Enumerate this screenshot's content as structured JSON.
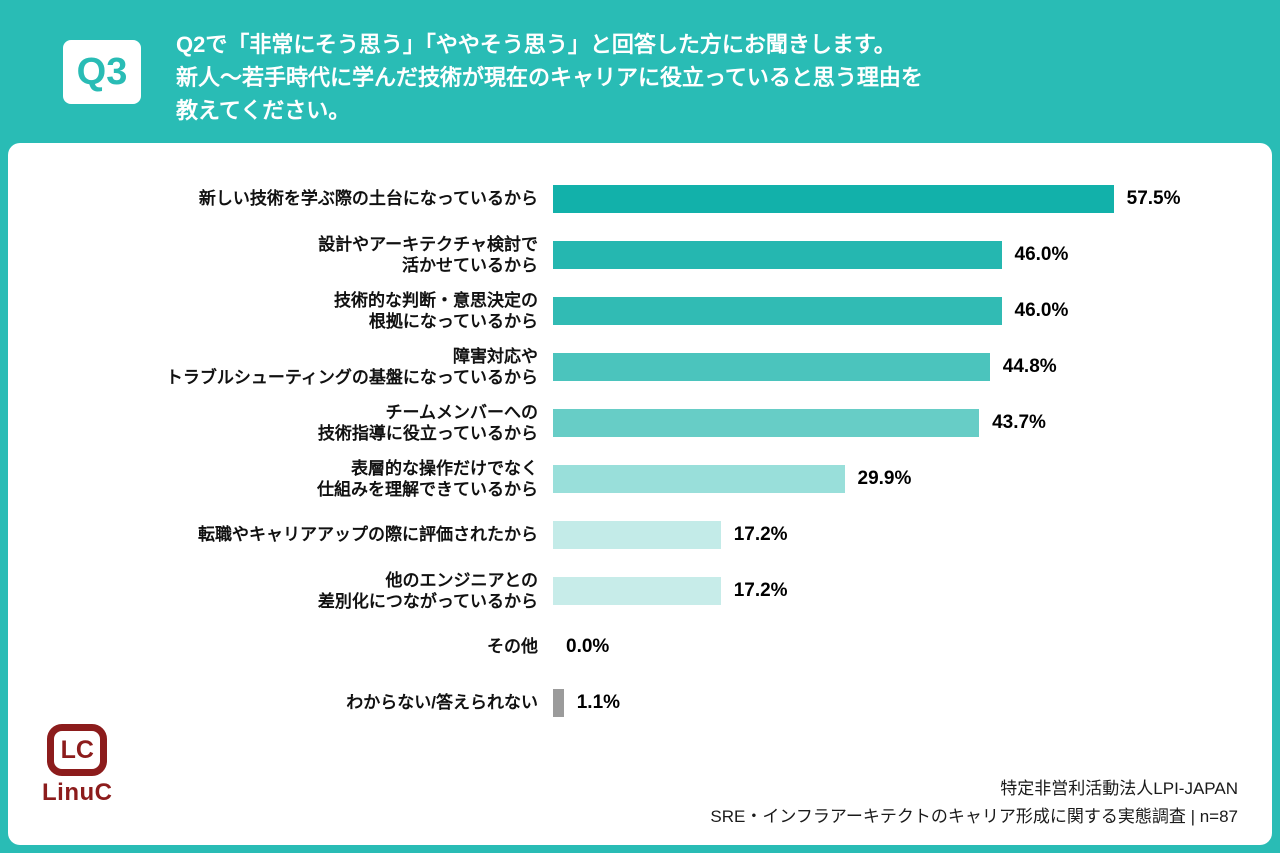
{
  "header": {
    "badge": "Q3",
    "question": "Q2で「非常にそう思う」「ややそう思う」と回答した方にお聞きします。\n新人〜若手時代に学んだ技術が現在のキャリアに役立っていると思う理由を\n教えてください。"
  },
  "chart_data": {
    "type": "bar",
    "orientation": "horizontal",
    "unit": "%",
    "xlim": [
      0,
      60
    ],
    "categories": [
      "新しい技術を学ぶ際の土台になっているから",
      "設計やアーキテクチャ検討で\n活かせているから",
      "技術的な判断・意思決定の\n根拠になっているから",
      "障害対応や\nトラブルシューティングの基盤になっているから",
      "チームメンバーへの\n技術指導に役立っているから",
      "表層的な操作だけでなく\n仕組みを理解できているから",
      "転職やキャリアアップの際に評価されたから",
      "他のエンジニアとの\n差別化につながっているから",
      "その他",
      "わからない/答えられない"
    ],
    "values": [
      57.5,
      46.0,
      46.0,
      44.8,
      43.7,
      29.9,
      17.2,
      17.2,
      0.0,
      1.1
    ],
    "value_labels": [
      "57.5%",
      "46.0%",
      "46.0%",
      "44.8%",
      "43.7%",
      "29.9%",
      "17.2%",
      "17.2%",
      "0.0%",
      "1.1%"
    ],
    "bar_colors": [
      "#12b1aa",
      "#25b7b0",
      "#31bbb4",
      "#4bc4bd",
      "#67cdc6",
      "#99dfda",
      "#c3ebe8",
      "#c7ece9",
      "transparent",
      "#9b9b9b"
    ],
    "accent_color": "#29bcb5",
    "no_answer_color": "#9b9b9b",
    "legend": false,
    "grid": false
  },
  "footer": {
    "logo_text": "LC",
    "logo_name": "LinuC",
    "source_line1": "特定非営利活動法人LPI-JAPAN",
    "source_line2": "SRE・インフラアーキテクトのキャリア形成に関する実態調査 | n=87"
  }
}
